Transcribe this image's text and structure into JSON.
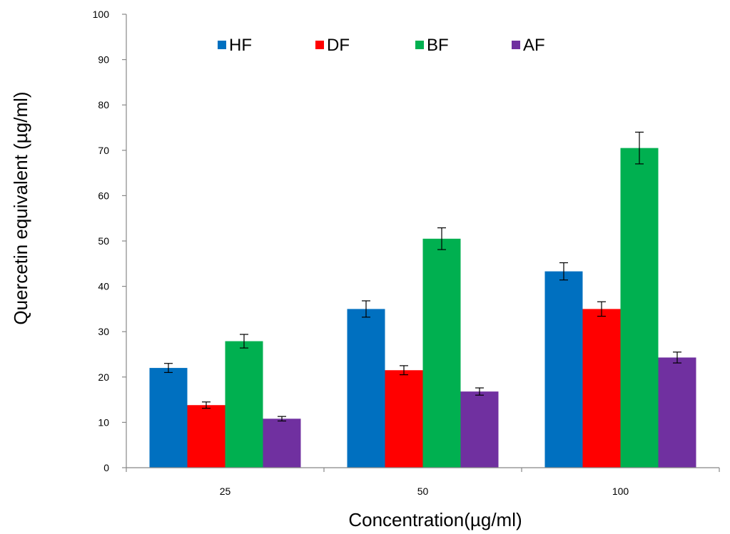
{
  "chart_data": {
    "type": "bar",
    "xlabel": "Concentration(µg/ml)",
    "ylabel": "Quercetin equivalent (µg/ml)",
    "categories": [
      "25",
      "50",
      "100"
    ],
    "ylim": [
      0,
      100
    ],
    "yticks": [
      0,
      10,
      20,
      30,
      40,
      50,
      60,
      70,
      80,
      90,
      100
    ],
    "grid": false,
    "legend_position": "top",
    "series": [
      {
        "name": "HF",
        "color": "#0070C0",
        "values": [
          22,
          35,
          43.3
        ],
        "errors": [
          1.0,
          1.8,
          1.9
        ]
      },
      {
        "name": "DF",
        "color": "#FF0000",
        "values": [
          13.8,
          21.5,
          35
        ],
        "errors": [
          0.7,
          1.0,
          1.6
        ]
      },
      {
        "name": "BF",
        "color": "#00B050",
        "values": [
          27.9,
          50.5,
          70.5
        ],
        "errors": [
          1.5,
          2.4,
          3.5
        ]
      },
      {
        "name": "AF",
        "color": "#7030A0",
        "values": [
          10.8,
          16.8,
          24.3
        ],
        "errors": [
          0.5,
          0.8,
          1.2
        ]
      }
    ]
  }
}
